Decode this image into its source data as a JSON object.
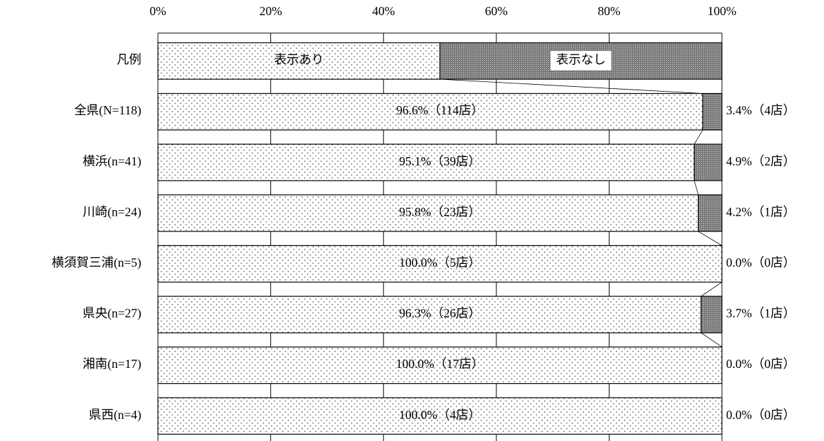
{
  "chart_data": {
    "type": "stacked-barh",
    "legend_label": "凡例",
    "categories": [
      "全県(N=118)",
      "横浜(n=41)",
      "川崎(n=24)",
      "横須賀三浦(n=5)",
      "県央(n=27)",
      "湘南(n=17)",
      "県西(n=4)"
    ],
    "series": [
      {
        "name": "表示あり",
        "color": "#ffffff",
        "values": [
          96.6,
          95.1,
          95.8,
          100.0,
          96.3,
          100.0,
          100.0
        ],
        "value_labels": [
          "96.6%（114店）",
          "95.1%（39店）",
          "95.8%（23店）",
          "100.0%（5店）",
          "96.3%（26店）",
          "100.0%（17店）",
          "100.0%（4店）"
        ]
      },
      {
        "name": "表示なし",
        "color": "#7a7a7a",
        "values": [
          3.4,
          4.9,
          4.2,
          0.0,
          3.7,
          0.0,
          0.0
        ],
        "value_labels": [
          "3.4%（4店）",
          "4.9%（2店）",
          "4.2%（1店）",
          "0.0%（0店）",
          "3.7%（1店）",
          "0.0%（0店）",
          "0.0%（0店）"
        ]
      }
    ],
    "xlim": [
      0,
      100
    ],
    "xticks": [
      {
        "value": 0,
        "label": "0%"
      },
      {
        "value": 20,
        "label": "20%"
      },
      {
        "value": 40,
        "label": "40%"
      },
      {
        "value": 60,
        "label": "60%"
      },
      {
        "value": 80,
        "label": "80%"
      },
      {
        "value": 100,
        "label": "100%"
      }
    ],
    "grid": true
  }
}
